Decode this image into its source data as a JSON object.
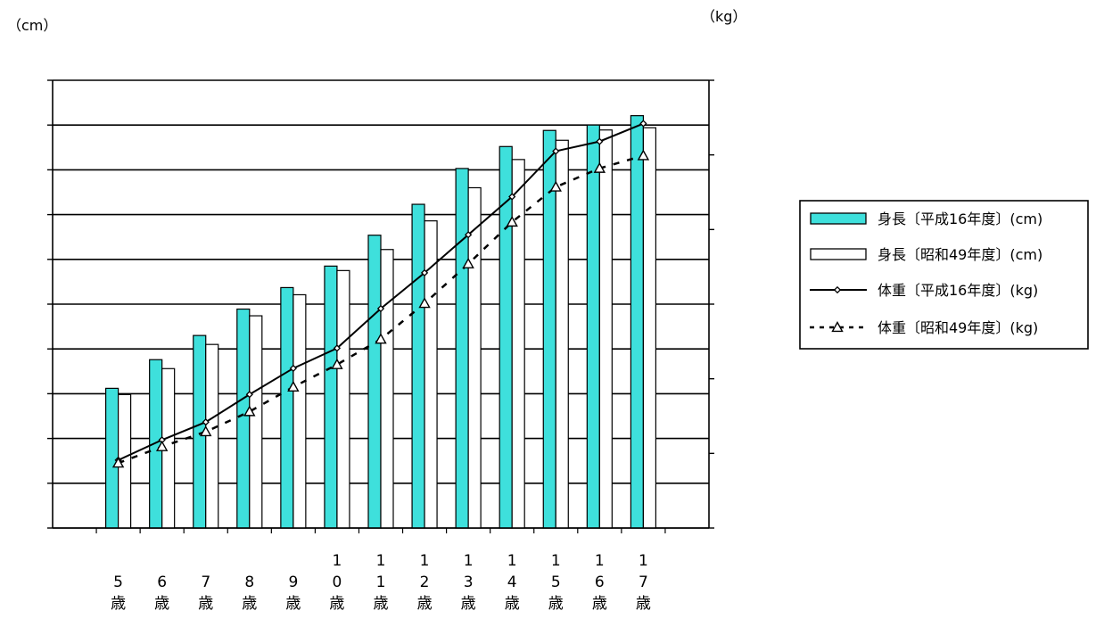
{
  "chart_data": {
    "type": "bar",
    "categories": [
      "5歳",
      "6歳",
      "7歳",
      "8歳",
      "9歳",
      "10歳",
      "11歳",
      "12歳",
      "13歳",
      "14歳",
      "15歳",
      "16歳",
      "17歳"
    ],
    "left_axis": {
      "unit": "（cm）",
      "ylim": [
        80,
        180
      ],
      "ticks": [
        80,
        90,
        100,
        110,
        120,
        130,
        140,
        150,
        160,
        170,
        180
      ]
    },
    "right_axis": {
      "unit": "（kg）",
      "ylim": [
        10,
        70
      ],
      "ticks": [
        10,
        20,
        30,
        40,
        50,
        60,
        70
      ]
    },
    "grid": true,
    "legend_position": "right",
    "series": [
      {
        "name": "身長〔平成16年度〕(cm)",
        "type": "bar",
        "axis": "left",
        "color": "#3ee0dc",
        "values": [
          111.2,
          117.6,
          123.0,
          128.9,
          133.7,
          138.5,
          145.4,
          152.3,
          160.3,
          165.2,
          168.8,
          170.0,
          172.1
        ]
      },
      {
        "name": "身長〔昭和49年度〕(cm)",
        "type": "bar",
        "axis": "left",
        "color": "#ffffff",
        "values": [
          109.8,
          115.6,
          121.0,
          127.4,
          132.1,
          137.5,
          142.2,
          148.6,
          156.0,
          162.3,
          166.6,
          168.9,
          169.4
        ]
      },
      {
        "name": "体重〔平成16年度〕(kg)",
        "type": "line",
        "axis": "right",
        "color": "#000000",
        "marker": "diamond",
        "line_style": "solid",
        "values": [
          19.1,
          21.8,
          24.2,
          27.9,
          31.4,
          34.1,
          39.4,
          44.2,
          49.3,
          54.4,
          60.5,
          61.8,
          64.2
        ]
      },
      {
        "name": "体重〔昭和49年度〕(kg)",
        "type": "line",
        "axis": "right",
        "color": "#000000",
        "marker": "triangle",
        "line_style": "dotted",
        "values": [
          18.7,
          20.9,
          22.9,
          25.6,
          28.9,
          31.9,
          35.3,
          40.1,
          45.4,
          51.0,
          55.7,
          58.2,
          59.9
        ]
      }
    ]
  }
}
